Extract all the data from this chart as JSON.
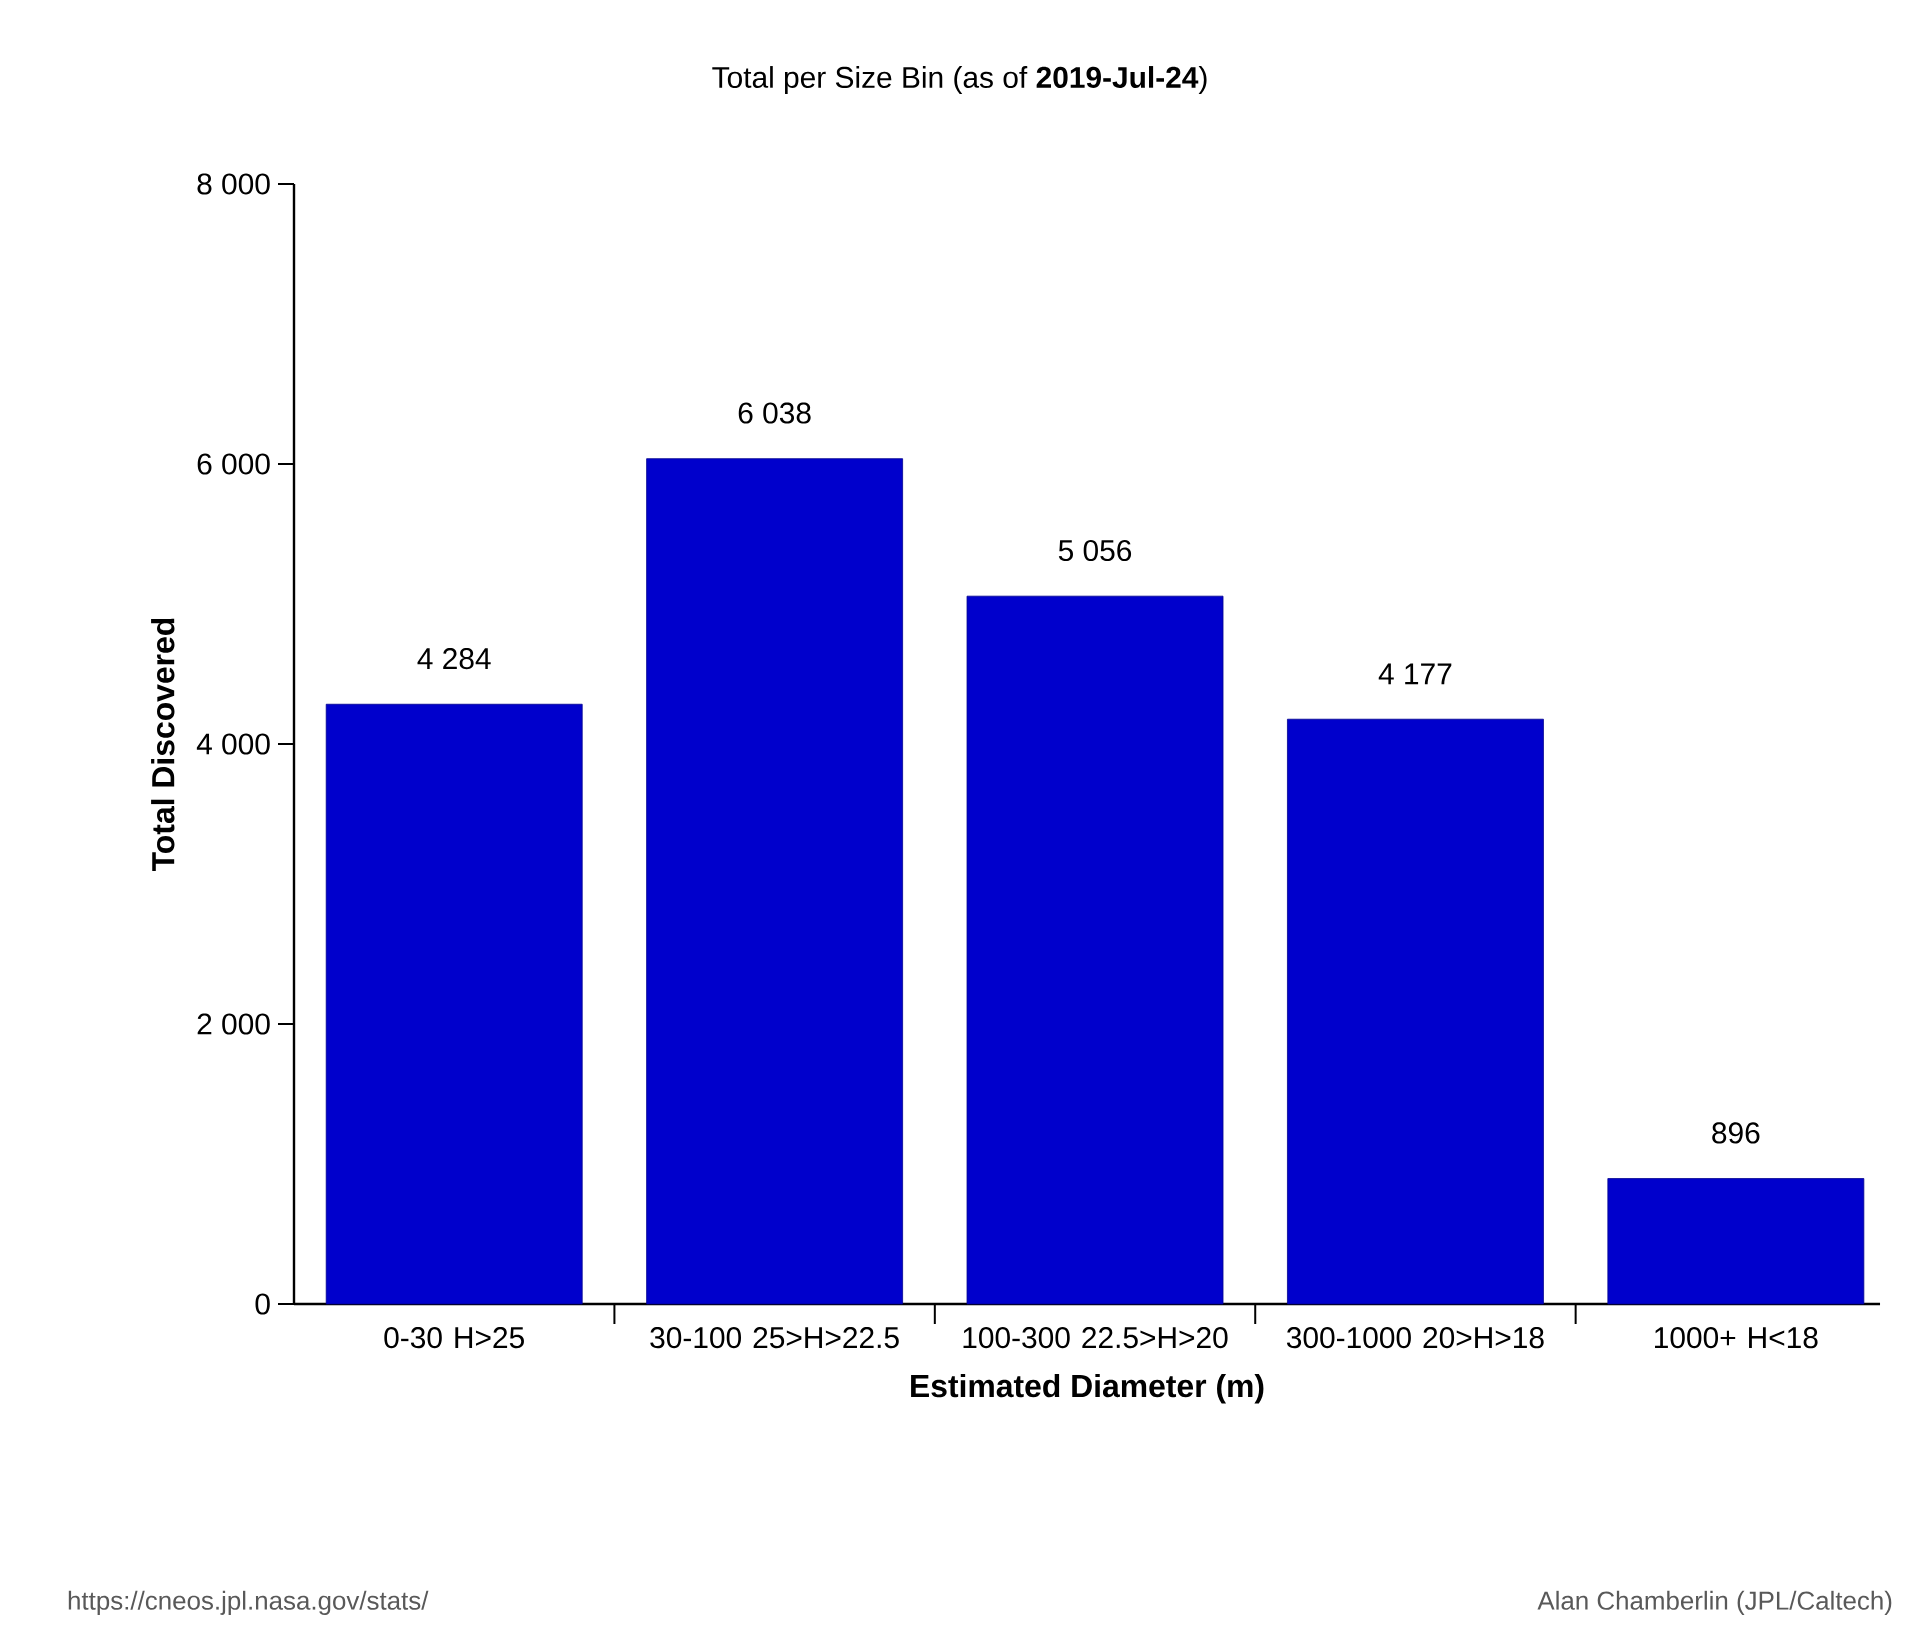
{
  "chart_data": {
    "type": "bar",
    "title": "Total per Size Bin (as of **2019-Jul-24**)",
    "xlabel": "Estimated Diameter (m)",
    "ylabel": "Total Discovered",
    "categories": [
      "0-30 H>25",
      "30-100 25>H>22.5",
      "100-300 22.5>H>20",
      "300-1000 20>H>18",
      "1000+ H<18"
    ],
    "values": [
      4284,
      6038,
      5056,
      4177,
      896
    ],
    "value_labels": [
      "4 284",
      "6 038",
      "5 056",
      "4 177",
      "896"
    ],
    "color": "#0000cc",
    "ylim": [
      0,
      8000
    ],
    "yticks": [
      0,
      {
        "value": 2000,
        "label": "2 000"
      },
      {
        "value": 4000,
        "label": "4 000"
      },
      {
        "value": 6000,
        "label": "6 000"
      },
      {
        "value": 8000,
        "label": "8 000"
      }
    ],
    "annotations": [
      "https://cneos.jpl.nasa.gov/stats/",
      "Alan Chamberlin (JPL/Caltech)"
    ]
  }
}
